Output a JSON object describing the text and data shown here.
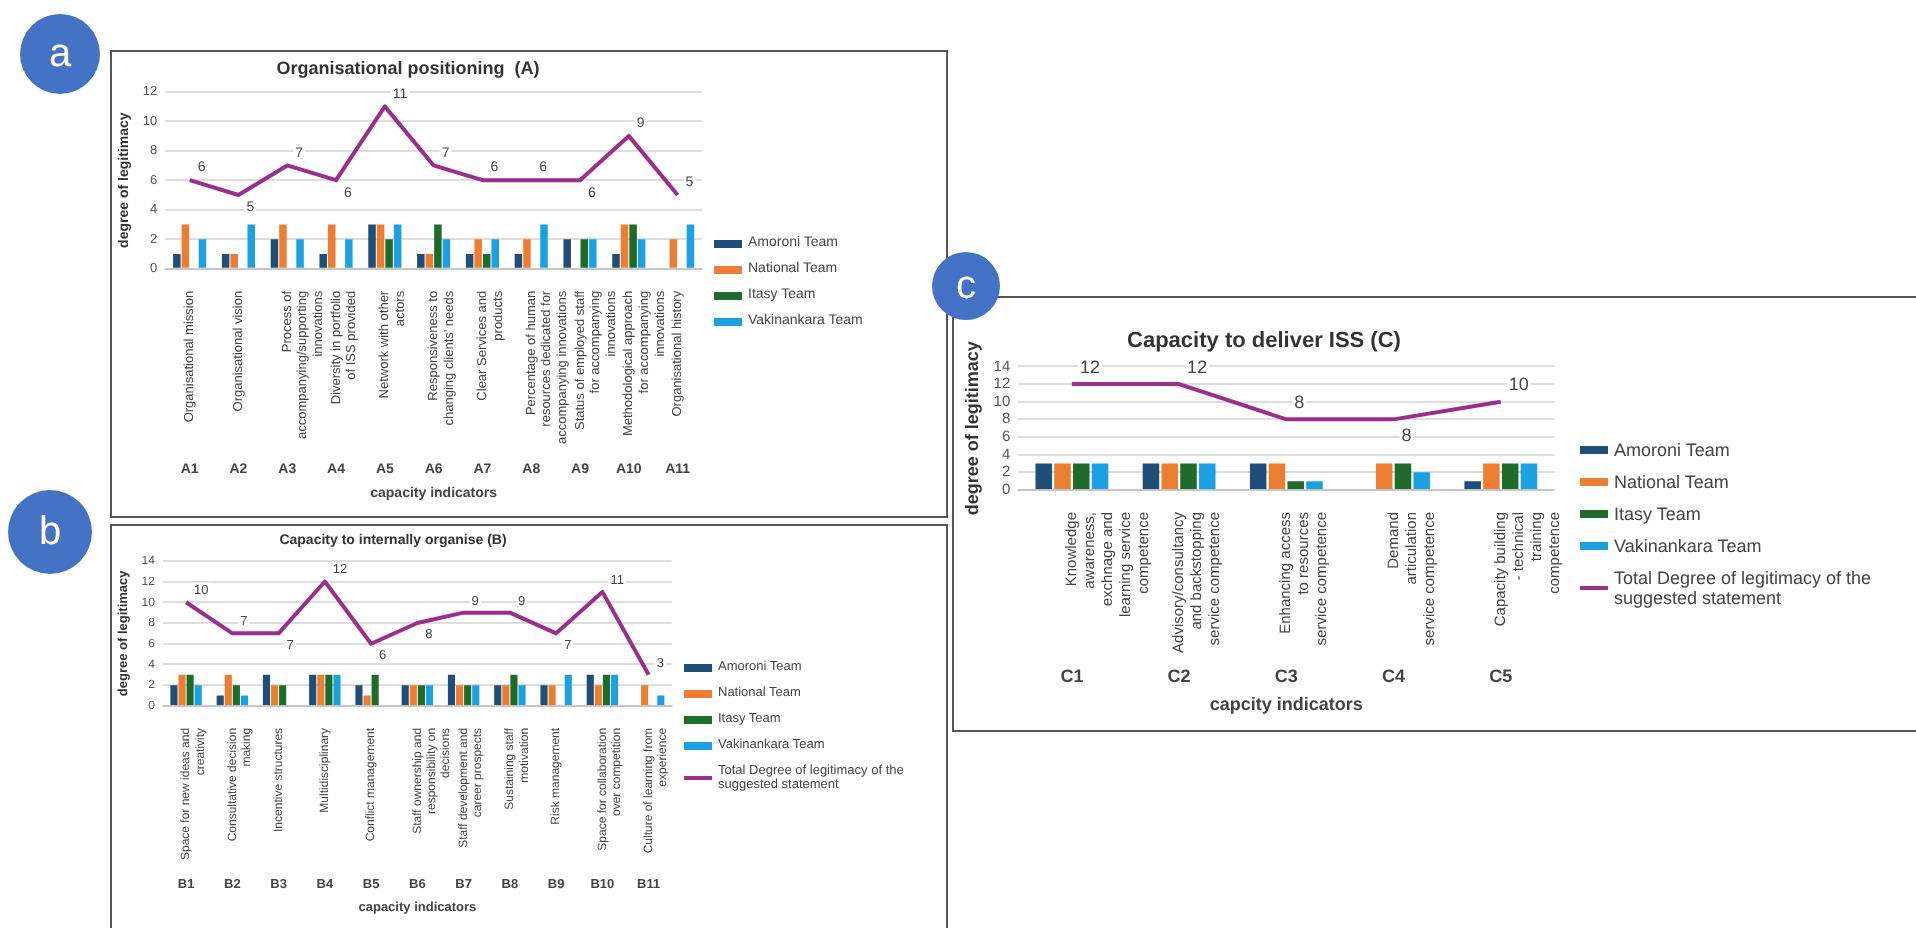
{
  "chart_data": [
    {
      "type": "bar",
      "title": "Organisational positioning  (A)",
      "xlabel": "capacity indicators",
      "ylabel": "degree of legitimacy",
      "categories": [
        "Organisational mission",
        "Organisational vision",
        "Process of accompanying/supporting innovations",
        "Diversity in portfolio of ISS provided",
        "Network with other actors",
        "Responsiveness to changing clients’ needs",
        "Clear Services and products",
        "Percentage of human resources dedicated for accompanying innovations",
        "Status of employed staff for accompanying innovations",
        "Methodological  approach for accompanying innovations",
        "Organisational history"
      ],
      "series": [
        {
          "name": "Amoroni Team",
          "color": "#1f4e79",
          "values": [
            1,
            1,
            2,
            1,
            3,
            1,
            1,
            1,
            2,
            1,
            null
          ]
        },
        {
          "name": "National Team",
          "color": "#ed7d31",
          "values": [
            3,
            1,
            3,
            3,
            3,
            1,
            2,
            2,
            null,
            3,
            2
          ]
        },
        {
          "name": "Itasy Team",
          "color": "#1e6b2a",
          "values": [
            null,
            null,
            null,
            null,
            2,
            3,
            1,
            null,
            2,
            3,
            null
          ]
        },
        {
          "name": "Vakinankara Team",
          "color": "#1ba1e2",
          "values": [
            2,
            3,
            2,
            2,
            3,
            2,
            2,
            3,
            2,
            2,
            3
          ]
        },
        {
          "type": "line",
          "color": "#9b2d8e",
          "values": [
            6,
            5,
            7,
            6,
            11,
            7,
            6,
            6,
            6,
            9,
            5
          ],
          "value_labels": [
            "6",
            "5",
            "7",
            "6",
            "11",
            "7",
            "6",
            "6",
            "6",
            "9",
            "5"
          ]
        }
      ],
      "ylim": [
        0,
        12
      ],
      "yticks": [
        0,
        2,
        4,
        6,
        8,
        10,
        12
      ],
      "grid": "y",
      "legend": "right",
      "marker": "none",
      "annotations": [
        "a",
        "A1",
        "A2",
        "A3",
        "A4",
        "A5",
        "A6",
        "A7",
        "A8",
        "A9",
        "A10",
        "A11"
      ]
    },
    {
      "type": "bar",
      "title": "Capacity to internally organise (B)",
      "xlabel": "capacity indicators",
      "ylabel": "degree of legitimacy",
      "categories": [
        "Space for new ideas and creativity",
        "Consultative decision making",
        "Incentive structures",
        "Multidisciplinary",
        "Conflict management",
        "Staff ownership and responsibility on decisions",
        "Staff development and career prospects",
        "Sustaining staff motivation",
        "Risk management",
        "Space for collaboration over competition",
        "Culture of learning from experience"
      ],
      "series": [
        {
          "name": "Amoroni Team",
          "color": "#1f4e79",
          "values": [
            2,
            1,
            3,
            3,
            2,
            2,
            3,
            2,
            2,
            3,
            null
          ]
        },
        {
          "name": "National Team",
          "color": "#ed7d31",
          "values": [
            3,
            3,
            2,
            3,
            1,
            2,
            2,
            2,
            2,
            2,
            2
          ]
        },
        {
          "name": "Itasy Team",
          "color": "#1e6b2a",
          "values": [
            3,
            2,
            2,
            3,
            3,
            2,
            2,
            3,
            null,
            3,
            null
          ]
        },
        {
          "name": "Vakinankara Team",
          "color": "#1ba1e2",
          "values": [
            2,
            1,
            null,
            3,
            null,
            2,
            2,
            2,
            3,
            3,
            1
          ]
        },
        {
          "type": "line",
          "name": "Total Degree of legitimacy of the suggested statement",
          "color": "#9b2d8e",
          "values": [
            10,
            7,
            7,
            12,
            6,
            8,
            9,
            9,
            7,
            11,
            3
          ],
          "value_labels": [
            "10",
            "7",
            "7",
            "12",
            "6",
            "8",
            "9",
            "9",
            "7",
            "11",
            "3"
          ]
        }
      ],
      "ylim": [
        0,
        14
      ],
      "yticks": [
        0,
        2,
        4,
        6,
        8,
        10,
        12,
        14
      ],
      "grid": "y",
      "legend": "right",
      "marker": "none",
      "annotations": [
        "b",
        "B1",
        "B2",
        "B3",
        "B4",
        "B5",
        "B6",
        "B7",
        "B8",
        "B9",
        "B10",
        "B11"
      ]
    },
    {
      "type": "bar",
      "title": "Capacity to deliver ISS (C)",
      "xlabel": "capcity indicators",
      "ylabel": "degree of legitimacy",
      "categories": [
        "Knowledge awareness, exchnage and learning service competence",
        "Advisory/consultancy and backstopping service competence",
        "Enhancing access to resources service competence",
        "Demand articulation service competence",
        "Capacity building - technical training competence"
      ],
      "series": [
        {
          "name": "Amoroni Team",
          "color": "#1f4e79",
          "values": [
            3,
            3,
            3,
            null,
            1
          ]
        },
        {
          "name": "National Team",
          "color": "#ed7d31",
          "values": [
            3,
            3,
            3,
            3,
            3
          ]
        },
        {
          "name": "Itasy Team",
          "color": "#1e6b2a",
          "values": [
            3,
            3,
            1,
            3,
            3
          ]
        },
        {
          "name": "Vakinankara Team",
          "color": "#1ba1e2",
          "values": [
            3,
            3,
            1,
            2,
            3
          ]
        },
        {
          "type": "line",
          "name": "Total Degree of legitimacy of the suggested statement",
          "color": "#9b2d8e",
          "values": [
            12,
            12,
            8,
            8,
            10
          ],
          "value_labels": [
            "12",
            "12",
            "8",
            "8",
            "10"
          ]
        }
      ],
      "ylim": [
        0,
        14
      ],
      "yticks": [
        0,
        2,
        4,
        6,
        8,
        10,
        12,
        14
      ],
      "grid": "y",
      "legend": "right",
      "marker": "none",
      "annotations": [
        "c",
        "C1",
        "C2",
        "C3",
        "C4",
        "C5"
      ]
    }
  ]
}
